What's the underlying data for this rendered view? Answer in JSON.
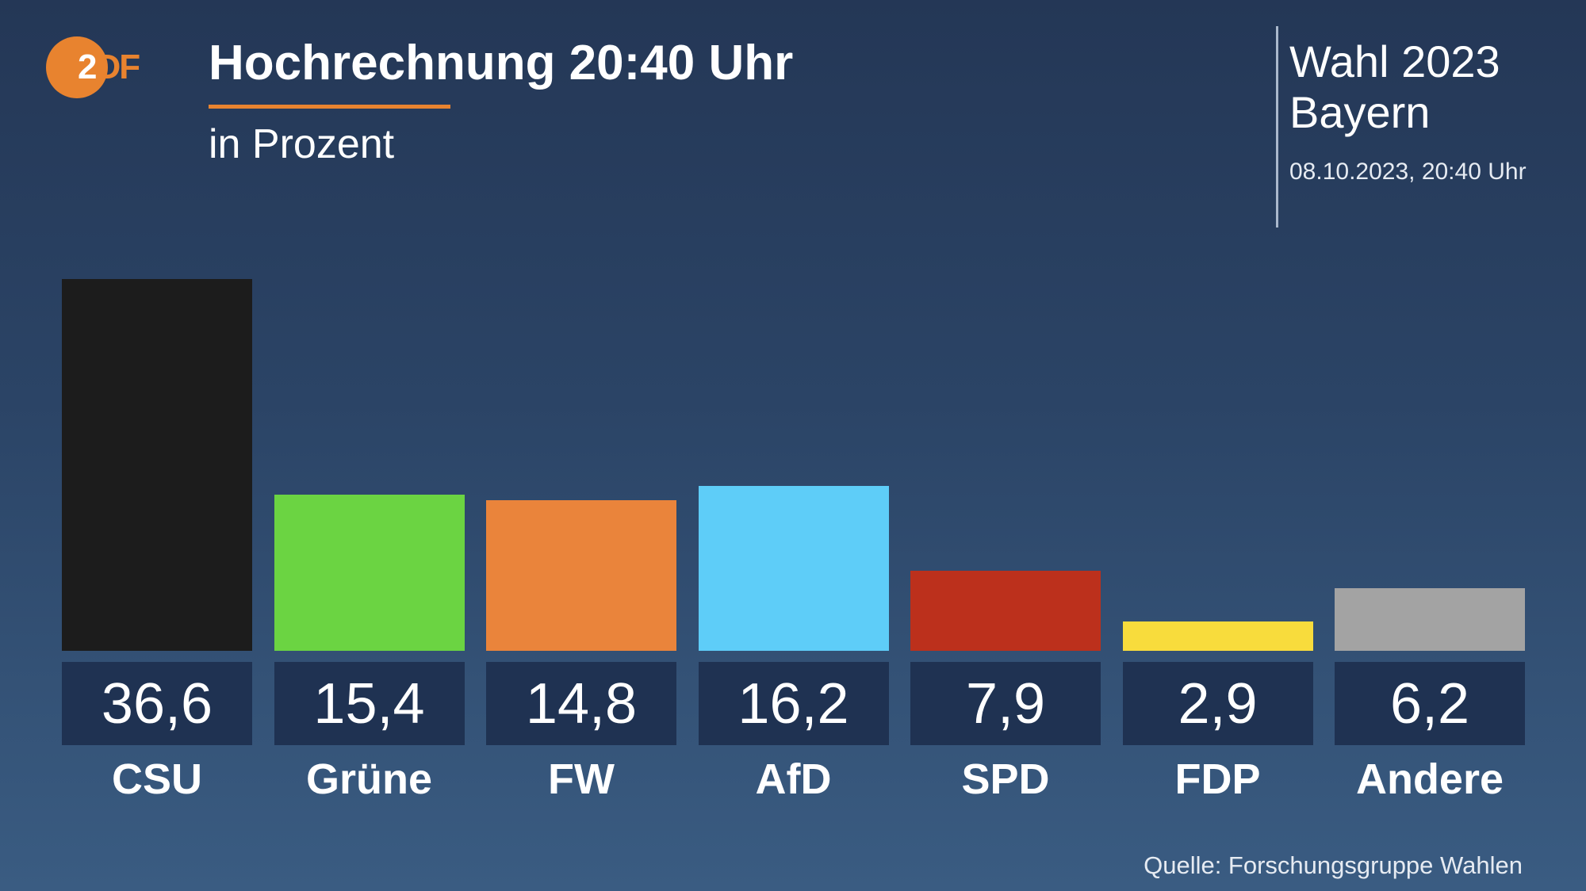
{
  "header": {
    "logo_text_a": "2",
    "logo_text_b": "DF",
    "title": "Hochrechnung 20:40 Uhr",
    "subtitle": "in Prozent"
  },
  "info": {
    "line1": "Wahl 2023",
    "line2": "Bayern",
    "date": "08.10.2023, 20:40 Uhr"
  },
  "source": "Quelle: Forschungsgruppe Wahlen",
  "chart_data": {
    "type": "bar",
    "title": "Hochrechnung 20:40 Uhr",
    "subtitle": "in Prozent",
    "ylabel": "Prozent",
    "ylim": [
      0,
      36.6
    ],
    "categories": [
      "CSU",
      "Grüne",
      "FW",
      "AfD",
      "SPD",
      "FDP",
      "Andere"
    ],
    "values": [
      36.6,
      15.4,
      14.8,
      16.2,
      7.9,
      2.9,
      6.2
    ],
    "value_labels": [
      "36,6",
      "15,4",
      "14,8",
      "16,2",
      "7,9",
      "2,9",
      "6,2"
    ],
    "colors": [
      "#1c1c1c",
      "#6bd442",
      "#ea843b",
      "#5ecdf8",
      "#bc301c",
      "#f8dc3c",
      "#a3a3a3"
    ]
  }
}
